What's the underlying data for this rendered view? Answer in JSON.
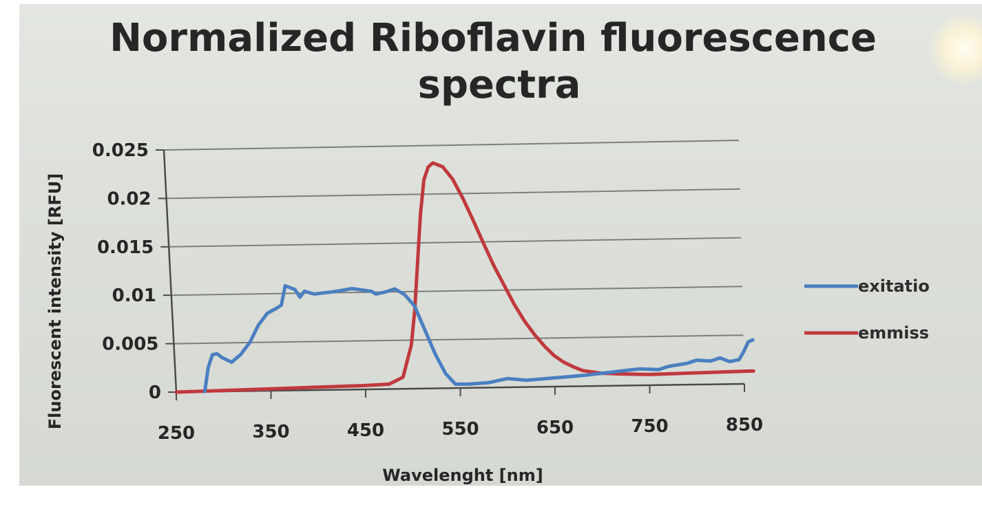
{
  "chart_data": {
    "type": "line",
    "title_line1": "Normalized Riboflavin fluorescence",
    "title_line2": "spectra",
    "xlabel": "Wavelenght [nm]",
    "ylabel": "Fluorescent intensity [RFU]",
    "xlim": [
      250,
      850
    ],
    "ylim": [
      0,
      0.025
    ],
    "x_ticks": [
      250,
      350,
      450,
      550,
      650,
      750,
      850
    ],
    "y_ticks": [
      "0",
      "0.005",
      "0.01",
      "0.015",
      "0.02",
      "0.025"
    ],
    "grid": true,
    "legend_position": "right",
    "series": [
      {
        "name": "exitatio",
        "color": "#4a7fc1",
        "points": [
          [
            280,
            0
          ],
          [
            285,
            0.0025
          ],
          [
            290,
            0.0038
          ],
          [
            295,
            0.0039
          ],
          [
            300,
            0.0035
          ],
          [
            310,
            0.003
          ],
          [
            320,
            0.0038
          ],
          [
            330,
            0.005
          ],
          [
            340,
            0.0068
          ],
          [
            350,
            0.008
          ],
          [
            360,
            0.0085
          ],
          [
            365,
            0.0088
          ],
          [
            370,
            0.0108
          ],
          [
            380,
            0.0104
          ],
          [
            385,
            0.0096
          ],
          [
            390,
            0.0102
          ],
          [
            400,
            0.0099
          ],
          [
            420,
            0.0101
          ],
          [
            440,
            0.0104
          ],
          [
            460,
            0.0101
          ],
          [
            465,
            0.0098
          ],
          [
            475,
            0.01
          ],
          [
            485,
            0.0103
          ],
          [
            495,
            0.0097
          ],
          [
            505,
            0.0085
          ],
          [
            515,
            0.006
          ],
          [
            525,
            0.0035
          ],
          [
            535,
            0.0015
          ],
          [
            545,
            0.0004
          ],
          [
            560,
            0.0004
          ],
          [
            580,
            0.0005
          ],
          [
            600,
            0.0009
          ],
          [
            620,
            0.0007
          ],
          [
            650,
            0.0009
          ],
          [
            680,
            0.0011
          ],
          [
            700,
            0.0013
          ],
          [
            720,
            0.0015
          ],
          [
            740,
            0.0017
          ],
          [
            760,
            0.0016
          ],
          [
            770,
            0.0019
          ],
          [
            790,
            0.0022
          ],
          [
            800,
            0.0025
          ],
          [
            815,
            0.0024
          ],
          [
            825,
            0.0027
          ],
          [
            835,
            0.0023
          ],
          [
            845,
            0.0025
          ],
          [
            850,
            0.0033
          ],
          [
            855,
            0.0043
          ],
          [
            860,
            0.0045
          ]
        ]
      },
      {
        "name": "emmiss",
        "color": "#c0393d",
        "points": [
          [
            250,
            0
          ],
          [
            300,
            0.0001
          ],
          [
            350,
            0.0002
          ],
          [
            400,
            0.0003
          ],
          [
            450,
            0.0004
          ],
          [
            475,
            0.0005
          ],
          [
            490,
            0.0012
          ],
          [
            500,
            0.0045
          ],
          [
            505,
            0.008
          ],
          [
            510,
            0.013
          ],
          [
            515,
            0.018
          ],
          [
            520,
            0.0215
          ],
          [
            525,
            0.0228
          ],
          [
            530,
            0.0232
          ],
          [
            540,
            0.0228
          ],
          [
            550,
            0.0215
          ],
          [
            560,
            0.0195
          ],
          [
            570,
            0.0172
          ],
          [
            580,
            0.0148
          ],
          [
            590,
            0.0125
          ],
          [
            600,
            0.0105
          ],
          [
            610,
            0.0085
          ],
          [
            620,
            0.0068
          ],
          [
            630,
            0.0054
          ],
          [
            640,
            0.0042
          ],
          [
            650,
            0.0032
          ],
          [
            660,
            0.0025
          ],
          [
            670,
            0.002
          ],
          [
            680,
            0.0016
          ],
          [
            700,
            0.0013
          ],
          [
            720,
            0.0012
          ],
          [
            750,
            0.0011
          ],
          [
            800,
            0.0012
          ],
          [
            850,
            0.0013
          ],
          [
            860,
            0.0013
          ]
        ]
      }
    ]
  }
}
